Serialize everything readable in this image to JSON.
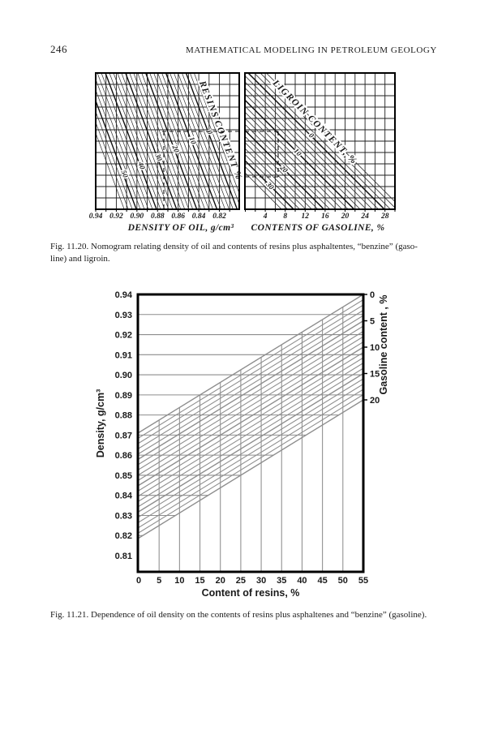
{
  "page": {
    "number": "246",
    "running_head": "MATHEMATICAL MODELING IN PETROLEUM GEOLOGY"
  },
  "colors": {
    "paper": "#ffffff",
    "ink": "#1a1a1a",
    "nomogram_line": "#1f1f1f",
    "fig1121_gray": "#8d8d8d"
  },
  "fig1120": {
    "caption_line1": "Fig. 11.20. Nomogram relating density of oil and contents of resins plus asphaltentes, “benzine” (gaso-",
    "caption_line2": "line) and ligroin."
  },
  "fig1121": {
    "caption": "Fig. 11.21. Dependence of oil density on the contents of resins plus asphaltenes and “benzine” (gasoline)."
  },
  "chart_data": [
    {
      "id": "nomogram-left",
      "type": "nomogram",
      "xlabel": "DENSITY OF OIL, g/cm³",
      "x_ticks": [
        "0.94",
        "0.92",
        "0.90",
        "0.88",
        "0.86",
        "0.84",
        "0.82"
      ],
      "x_tick_values": [
        0.94,
        0.92,
        0.9,
        0.88,
        0.86,
        0.84,
        0.82
      ],
      "x_axis_direction": "decreasing to the right",
      "diagonal_title": "RESINS CONTENT %",
      "family_name": "resins content, %",
      "family_line_labels": [
        "0",
        "10",
        "20",
        "30",
        "40",
        "50"
      ],
      "family_values": [
        0,
        10,
        20,
        30,
        40,
        50
      ],
      "grid": "square grid, minor vertical line every 0.01 g/cm³",
      "hatching": "fine parallel diagonal lines between the 0 and 50 resins-content lines",
      "dashed_example": "dash line enters at resins 0 level, drops to density ≈ 0.88"
    },
    {
      "id": "nomogram-right",
      "type": "nomogram",
      "xlabel": "CONTENTS OF GASOLINE, %",
      "x_ticks": [
        "4",
        "8",
        "12",
        "16",
        "20",
        "24",
        "28"
      ],
      "x_tick_values": [
        4,
        8,
        12,
        16,
        20,
        24,
        28
      ],
      "diagonal_title": "LIGROIN CONTENT, %",
      "family_name": "ligroin content, %",
      "family_line_labels": [
        "0",
        "10",
        "20",
        "30"
      ],
      "family_values": [
        0,
        10,
        20,
        30
      ],
      "grid": "square grid, minor vertical line every 2 %",
      "hatching": "fine parallel 45° diagonal lines across the band of ligroin lines",
      "dashed_example": "dash line continues from left chart to gasoline ≈ 7 %, ligroin ≈ 20 %"
    },
    {
      "id": "fig-11-21",
      "type": "line-family",
      "xlabel": "Content of resins, %",
      "ylabel": "Density, g/cm³",
      "y2label": "Gasoline content , %",
      "x_ticks": [
        "0",
        "5",
        "10",
        "15",
        "20",
        "25",
        "30",
        "35",
        "40",
        "45",
        "50",
        "55"
      ],
      "x_tick_values": [
        0,
        5,
        10,
        15,
        20,
        25,
        30,
        35,
        40,
        45,
        50,
        55
      ],
      "y_ticks": [
        "0.94",
        "0.93",
        "0.92",
        "0.91",
        "0.90",
        "0.89",
        "0.88",
        "0.87",
        "0.86",
        "0.85",
        "0.84",
        "0.83",
        "0.82",
        "0.81"
      ],
      "y2_ticks": [
        "0",
        "5",
        "10",
        "15",
        "20"
      ],
      "y2_tick_values": [
        0,
        5,
        10,
        15,
        20
      ],
      "xlim": [
        0,
        55
      ],
      "ylim": [
        0.805,
        0.94
      ],
      "family_name": "Gasoline content, %",
      "series": [
        {
          "gasoline_pct": 0,
          "points": [
            [
              0,
              0.87
            ],
            [
              55,
              0.94
            ]
          ]
        },
        {
          "gasoline_pct": 5,
          "points": [
            [
              0,
              0.8575
            ],
            [
              55,
              0.9275
            ]
          ]
        },
        {
          "gasoline_pct": 10,
          "points": [
            [
              0,
              0.845
            ],
            [
              55,
              0.915
            ]
          ]
        },
        {
          "gasoline_pct": 15,
          "points": [
            [
              0,
              0.8325
            ],
            [
              55,
              0.9025
            ]
          ]
        },
        {
          "gasoline_pct": 20,
          "points": [
            [
              0,
              0.82
            ],
            [
              55,
              0.89
            ]
          ]
        },
        {
          "note": "fine parallel lines drawn every 1 % gasoline between 0 and 20"
        }
      ],
      "grid": {
        "horizontal_every": 0.01,
        "vertical_every": 5,
        "style": "gray"
      }
    }
  ]
}
